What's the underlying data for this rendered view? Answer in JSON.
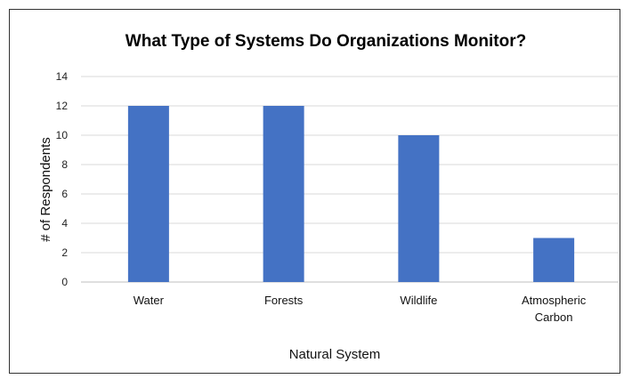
{
  "chart_data": {
    "type": "bar",
    "title": "What Type of Systems Do  Organizations Monitor?",
    "xlabel": "Natural System",
    "ylabel": "# of Respondents",
    "categories": [
      "Water",
      "Forests",
      "Wildlife",
      "Atmospheric Carbon"
    ],
    "category_lines": [
      [
        "Water"
      ],
      [
        "Forests"
      ],
      [
        "Wildlife"
      ],
      [
        "Atmospheric",
        "Carbon"
      ]
    ],
    "values": [
      12,
      12,
      10,
      3
    ],
    "ylim": [
      0,
      14
    ],
    "yticks": [
      0,
      2,
      4,
      6,
      8,
      10,
      12,
      14
    ],
    "grid": true,
    "legend": "none",
    "bar_color": "#4472c4"
  }
}
